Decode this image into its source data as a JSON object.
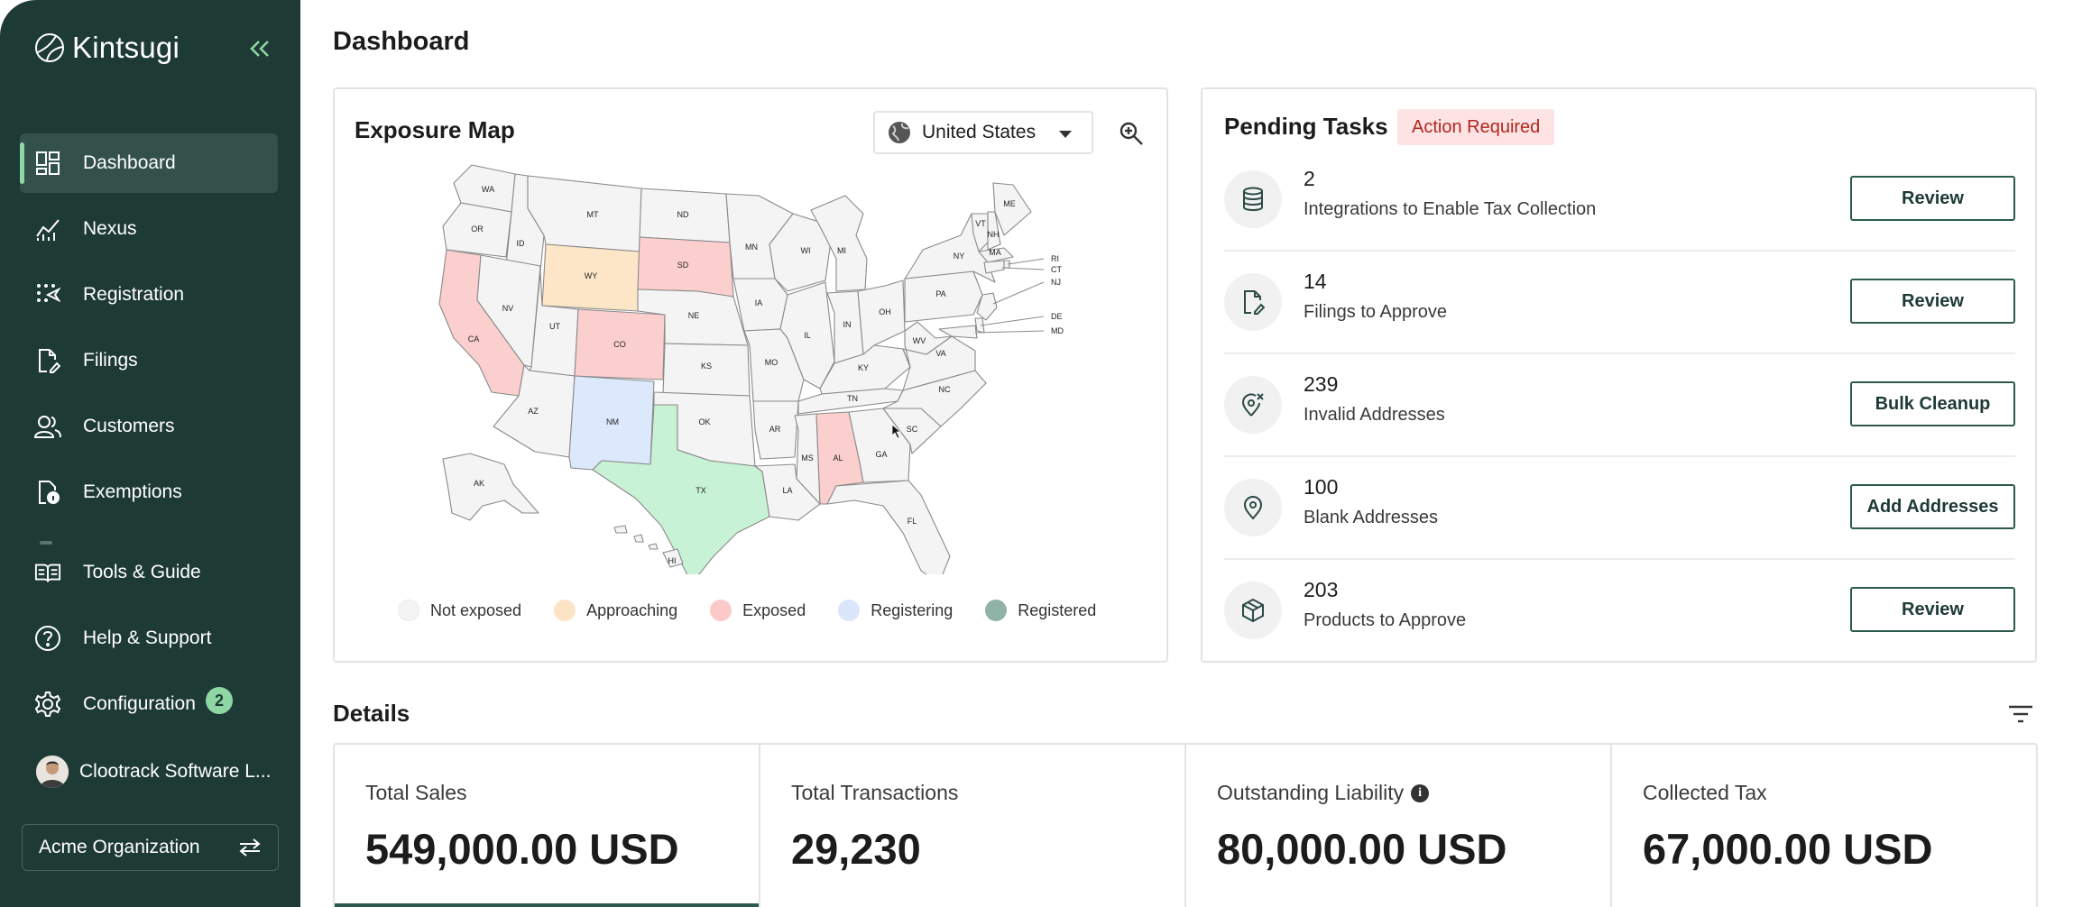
{
  "app": {
    "name": "Kintsugi"
  },
  "sidebar": {
    "items": [
      {
        "label": "Dashboard",
        "icon": "dashboard-icon",
        "active": true
      },
      {
        "label": "Nexus",
        "icon": "chart-line-icon"
      },
      {
        "label": "Registration",
        "icon": "registration-icon"
      },
      {
        "label": "Filings",
        "icon": "file-edit-icon"
      },
      {
        "label": "Customers",
        "icon": "users-icon"
      },
      {
        "label": "Exemptions",
        "icon": "file-info-icon"
      }
    ],
    "bottom_items": [
      {
        "label": "Tools & Guide",
        "icon": "book-icon"
      },
      {
        "label": "Help & Support",
        "icon": "help-circle-icon"
      },
      {
        "label": "Configuration",
        "icon": "gear-icon",
        "badge": "2"
      }
    ],
    "user": {
      "name": "Clootrack Software L..."
    },
    "organization": {
      "name": "Acme Organization"
    }
  },
  "page": {
    "title": "Dashboard"
  },
  "exposure_map": {
    "title": "Exposure Map",
    "country": "United States",
    "states": {
      "WA": "none",
      "OR": "none",
      "CA": "exposed",
      "ID": "none",
      "NV": "none",
      "MT": "none",
      "WY": "approaching",
      "UT": "none",
      "AZ": "none",
      "CO": "exposed",
      "NM": "registering",
      "ND": "none",
      "SD": "exposed",
      "NE": "none",
      "KS": "none",
      "OK": "none",
      "TX": "registered",
      "MN": "none",
      "IA": "none",
      "MO": "none",
      "AR": "none",
      "LA": "none",
      "WI": "none",
      "IL": "none",
      "MS": "none",
      "MI": "none",
      "IN": "none",
      "KY": "none",
      "TN": "none",
      "AL": "exposed",
      "OH": "none",
      "GA": "none",
      "FL": "none",
      "SC": "none",
      "NC": "none",
      "VA": "none",
      "WV": "none",
      "PA": "none",
      "NY": "none",
      "VT": "none",
      "NH": "none",
      "ME": "none",
      "MA": "none",
      "RI": "none",
      "CT": "none",
      "NJ": "none",
      "DE": "none",
      "MD": "none",
      "AK": "none",
      "HI": "none"
    },
    "colors": {
      "none": "#f4f4f4",
      "approaching": "#fde6c8",
      "exposed": "#fccfcf",
      "registering": "#dce8fb",
      "registered": "#c8f2d6"
    },
    "legend": [
      {
        "label": "Not exposed",
        "color": "#f4f4f4"
      },
      {
        "label": "Approaching",
        "color": "#fde3c5"
      },
      {
        "label": "Exposed",
        "color": "#fcc9c9"
      },
      {
        "label": "Registering",
        "color": "#dbe6fb"
      },
      {
        "label": "Registered",
        "color": "#8fb3a6"
      }
    ]
  },
  "pending_tasks": {
    "title": "Pending Tasks",
    "badge": "Action Required",
    "items": [
      {
        "count": "2",
        "label": "Integrations to Enable Tax Collection",
        "action": "Review",
        "icon": "database-icon"
      },
      {
        "count": "14",
        "label": "Filings to Approve",
        "action": "Review",
        "icon": "file-edit-icon"
      },
      {
        "count": "239",
        "label": "Invalid Addresses",
        "action": "Bulk Cleanup",
        "icon": "map-pin-x-icon"
      },
      {
        "count": "100",
        "label": "Blank Addresses",
        "action": "Add Addresses",
        "icon": "map-pin-icon"
      },
      {
        "count": "203",
        "label": "Products to Approve",
        "action": "Review",
        "icon": "box-icon"
      }
    ]
  },
  "details": {
    "title": "Details",
    "stats": [
      {
        "label": "Total Sales",
        "value": "549,000.00 USD"
      },
      {
        "label": "Total Transactions",
        "value": "29,230"
      },
      {
        "label": "Outstanding Liability",
        "value": "80,000.00 USD",
        "info": true
      },
      {
        "label": "Collected Tax",
        "value": "67,000.00 USD"
      }
    ]
  }
}
